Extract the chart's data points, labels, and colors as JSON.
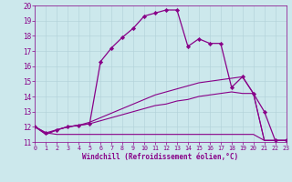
{
  "xlabel": "Windchill (Refroidissement éolien,°C)",
  "background_color": "#cce8ec",
  "line_color": "#880088",
  "grid_color": "#b0d0d8",
  "xlim": [
    0,
    23
  ],
  "ylim": [
    11,
    20
  ],
  "xticks": [
    0,
    1,
    2,
    3,
    4,
    5,
    6,
    7,
    8,
    9,
    10,
    11,
    12,
    13,
    14,
    15,
    16,
    17,
    18,
    19,
    20,
    21,
    22,
    23
  ],
  "yticks": [
    11,
    12,
    13,
    14,
    15,
    16,
    17,
    18,
    19,
    20
  ],
  "series": [
    {
      "x": [
        0,
        1,
        2,
        3,
        4,
        5,
        6,
        7,
        8,
        9,
        10,
        11,
        12,
        13,
        14,
        15,
        16,
        17,
        18,
        19,
        20,
        21,
        22,
        23
      ],
      "y": [
        12.0,
        11.6,
        11.5,
        11.5,
        11.5,
        11.5,
        11.5,
        11.5,
        11.5,
        11.5,
        11.5,
        11.5,
        11.5,
        11.5,
        11.5,
        11.5,
        11.5,
        11.5,
        11.5,
        11.5,
        11.5,
        11.1,
        11.1,
        11.1
      ],
      "marker": null,
      "linestyle": "-",
      "linewidth": 0.8
    },
    {
      "x": [
        0,
        1,
        2,
        3,
        4,
        5,
        6,
        7,
        8,
        9,
        10,
        11,
        12,
        13,
        14,
        15,
        16,
        17,
        18,
        19,
        20,
        21,
        22,
        23
      ],
      "y": [
        12.0,
        11.5,
        11.8,
        12.0,
        12.1,
        12.2,
        12.4,
        12.6,
        12.8,
        13.0,
        13.2,
        13.4,
        13.5,
        13.7,
        13.8,
        14.0,
        14.1,
        14.2,
        14.3,
        14.2,
        14.2,
        11.1,
        11.1,
        11.1
      ],
      "marker": null,
      "linestyle": "-",
      "linewidth": 0.8
    },
    {
      "x": [
        0,
        1,
        2,
        3,
        4,
        5,
        6,
        7,
        8,
        9,
        10,
        11,
        12,
        13,
        14,
        15,
        16,
        17,
        18,
        19,
        20,
        21,
        22,
        23
      ],
      "y": [
        12.0,
        11.5,
        11.8,
        12.0,
        12.1,
        12.3,
        12.6,
        12.9,
        13.2,
        13.5,
        13.8,
        14.1,
        14.3,
        14.5,
        14.7,
        14.9,
        15.0,
        15.1,
        15.2,
        15.3,
        14.2,
        11.1,
        11.1,
        11.1
      ],
      "marker": null,
      "linestyle": "-",
      "linewidth": 0.8
    },
    {
      "x": [
        0,
        1,
        2,
        3,
        4,
        5,
        6,
        7,
        8,
        9,
        10,
        11,
        12,
        13,
        14,
        15,
        16,
        17,
        18,
        19,
        20,
        21,
        22,
        23
      ],
      "y": [
        12.0,
        11.6,
        11.8,
        12.0,
        12.1,
        12.2,
        16.3,
        17.2,
        17.9,
        18.5,
        19.3,
        19.5,
        19.7,
        19.7,
        17.3,
        17.8,
        17.5,
        17.5,
        14.6,
        15.3,
        14.2,
        13.0,
        11.1,
        11.1
      ],
      "marker": "D",
      "markersize": 2.2,
      "linestyle": "-",
      "linewidth": 0.9
    }
  ]
}
